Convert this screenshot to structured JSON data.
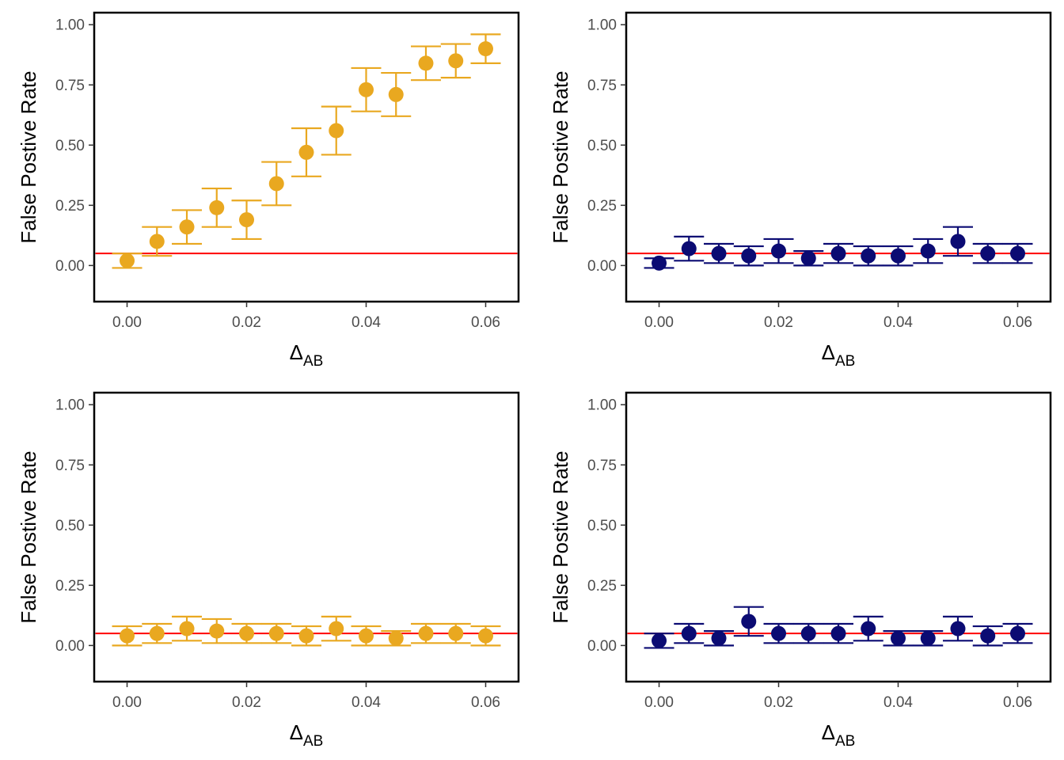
{
  "colors": {
    "orange": "#E9A820",
    "navy": "#0B0B73",
    "reference": "#FF0000",
    "axis": "#000000",
    "tick_text": "#4D4D4D"
  },
  "chart_data": [
    {
      "type": "scatter",
      "color": "#E9A820",
      "xlabel": "Δ",
      "xlabel_sub": "AB",
      "ylabel": "False Postive Rate",
      "xlim": [
        -0.0055,
        0.0655
      ],
      "ylim": [
        -0.15,
        1.05
      ],
      "x_ticks": [
        0.0,
        0.02,
        0.04,
        0.06
      ],
      "x_tick_labels": [
        "0.00",
        "0.02",
        "0.04",
        "0.06"
      ],
      "y_ticks": [
        0.0,
        0.25,
        0.5,
        0.75,
        1.0
      ],
      "y_tick_labels": [
        "0.00",
        "0.25",
        "0.50",
        "0.75",
        "1.00"
      ],
      "reference_line": 0.05,
      "grid": false,
      "series": [
        {
          "x": [
            0.0,
            0.005,
            0.01,
            0.015,
            0.02,
            0.025,
            0.03,
            0.035,
            0.04,
            0.045,
            0.05,
            0.055,
            0.06
          ],
          "y": [
            0.02,
            0.1,
            0.16,
            0.24,
            0.19,
            0.34,
            0.47,
            0.56,
            0.73,
            0.71,
            0.84,
            0.85,
            0.9
          ],
          "lower": [
            -0.01,
            0.04,
            0.09,
            0.16,
            0.11,
            0.25,
            0.37,
            0.46,
            0.64,
            0.62,
            0.77,
            0.78,
            0.84
          ],
          "upper": [
            0.05,
            0.16,
            0.23,
            0.32,
            0.27,
            0.43,
            0.57,
            0.66,
            0.82,
            0.8,
            0.91,
            0.92,
            0.96
          ]
        }
      ]
    },
    {
      "type": "scatter",
      "color": "#0B0B73",
      "xlabel": "Δ",
      "xlabel_sub": "AB",
      "ylabel": "False Postive Rate",
      "xlim": [
        -0.0055,
        0.0655
      ],
      "ylim": [
        -0.15,
        1.05
      ],
      "x_ticks": [
        0.0,
        0.02,
        0.04,
        0.06
      ],
      "x_tick_labels": [
        "0.00",
        "0.02",
        "0.04",
        "0.06"
      ],
      "y_ticks": [
        0.0,
        0.25,
        0.5,
        0.75,
        1.0
      ],
      "y_tick_labels": [
        "0.00",
        "0.25",
        "0.50",
        "0.75",
        "1.00"
      ],
      "reference_line": 0.05,
      "grid": false,
      "series": [
        {
          "x": [
            0.0,
            0.005,
            0.01,
            0.015,
            0.02,
            0.025,
            0.03,
            0.035,
            0.04,
            0.045,
            0.05,
            0.055,
            0.06
          ],
          "y": [
            0.01,
            0.07,
            0.05,
            0.04,
            0.06,
            0.03,
            0.05,
            0.04,
            0.04,
            0.06,
            0.1,
            0.05,
            0.05
          ],
          "lower": [
            -0.01,
            0.02,
            0.01,
            0.0,
            0.01,
            -0.0,
            0.01,
            0.0,
            0.0,
            0.01,
            0.04,
            0.01,
            0.01
          ],
          "upper": [
            0.03,
            0.12,
            0.09,
            0.08,
            0.11,
            0.06,
            0.09,
            0.08,
            0.08,
            0.11,
            0.16,
            0.09,
            0.09
          ]
        }
      ]
    },
    {
      "type": "scatter",
      "color": "#E9A820",
      "xlabel": "Δ",
      "xlabel_sub": "AB",
      "ylabel": "False Postive Rate",
      "xlim": [
        -0.0055,
        0.0655
      ],
      "ylim": [
        -0.15,
        1.05
      ],
      "x_ticks": [
        0.0,
        0.02,
        0.04,
        0.06
      ],
      "x_tick_labels": [
        "0.00",
        "0.02",
        "0.04",
        "0.06"
      ],
      "y_ticks": [
        0.0,
        0.25,
        0.5,
        0.75,
        1.0
      ],
      "y_tick_labels": [
        "0.00",
        "0.25",
        "0.50",
        "0.75",
        "1.00"
      ],
      "reference_line": 0.05,
      "grid": false,
      "series": [
        {
          "x": [
            0.0,
            0.005,
            0.01,
            0.015,
            0.02,
            0.025,
            0.03,
            0.035,
            0.04,
            0.045,
            0.05,
            0.055,
            0.06
          ],
          "y": [
            0.04,
            0.05,
            0.07,
            0.06,
            0.05,
            0.05,
            0.04,
            0.07,
            0.04,
            0.03,
            0.05,
            0.05,
            0.04
          ],
          "lower": [
            0.0,
            0.01,
            0.02,
            0.01,
            0.01,
            0.01,
            0.0,
            0.02,
            0.0,
            -0.0,
            0.01,
            0.01,
            0.0
          ],
          "upper": [
            0.08,
            0.09,
            0.12,
            0.11,
            0.09,
            0.09,
            0.08,
            0.12,
            0.08,
            0.06,
            0.09,
            0.09,
            0.08
          ]
        }
      ]
    },
    {
      "type": "scatter",
      "color": "#0B0B73",
      "xlabel": "Δ",
      "xlabel_sub": "AB",
      "ylabel": "False Postive Rate",
      "xlim": [
        -0.0055,
        0.0655
      ],
      "ylim": [
        -0.15,
        1.05
      ],
      "x_ticks": [
        0.0,
        0.02,
        0.04,
        0.06
      ],
      "x_tick_labels": [
        "0.00",
        "0.02",
        "0.04",
        "0.06"
      ],
      "y_ticks": [
        0.0,
        0.25,
        0.5,
        0.75,
        1.0
      ],
      "y_tick_labels": [
        "0.00",
        "0.25",
        "0.50",
        "0.75",
        "1.00"
      ],
      "reference_line": 0.05,
      "grid": false,
      "series": [
        {
          "x": [
            0.0,
            0.005,
            0.01,
            0.015,
            0.02,
            0.025,
            0.03,
            0.035,
            0.04,
            0.045,
            0.05,
            0.055,
            0.06
          ],
          "y": [
            0.02,
            0.05,
            0.03,
            0.1,
            0.05,
            0.05,
            0.05,
            0.07,
            0.03,
            0.03,
            0.07,
            0.04,
            0.05
          ],
          "lower": [
            -0.01,
            0.01,
            -0.0,
            0.04,
            0.01,
            0.01,
            0.01,
            0.02,
            -0.0,
            -0.0,
            0.02,
            0.0,
            0.01
          ],
          "upper": [
            0.05,
            0.09,
            0.06,
            0.16,
            0.09,
            0.09,
            0.09,
            0.12,
            0.06,
            0.06,
            0.12,
            0.08,
            0.09
          ]
        }
      ]
    }
  ]
}
